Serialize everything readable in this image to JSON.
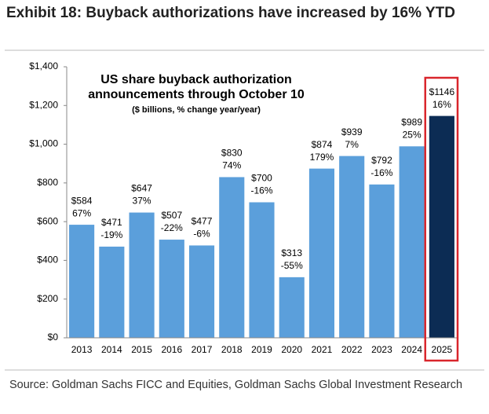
{
  "chart_data": {
    "type": "bar",
    "title": "Exhibit 18: Buyback authorizations have increased by 16% YTD",
    "inner_title": "US share buyback authorization announcements through October 10",
    "subtitle": "($ billions, % change year/year)",
    "source": "Source: Goldman Sachs FICC and Equities, Goldman Sachs Global Investment Research",
    "categories": [
      "2013",
      "2014",
      "2015",
      "2016",
      "2017",
      "2018",
      "2019",
      "2020",
      "2021",
      "2022",
      "2023",
      "2024",
      "2025"
    ],
    "values": [
      584,
      471,
      647,
      507,
      477,
      830,
      700,
      313,
      874,
      939,
      792,
      989,
      1146
    ],
    "value_labels": [
      "$584",
      "$471",
      "$647",
      "$507",
      "$477",
      "$830",
      "$700",
      "$313",
      "$874",
      "$939",
      "$792",
      "$989",
      "$1146"
    ],
    "change_labels": [
      "67%",
      "-19%",
      "37%",
      "-22%",
      "-6%",
      "74%",
      "-16%",
      "-55%",
      "179%",
      "7%",
      "-16%",
      "25%",
      "16%"
    ],
    "colors": [
      "#5b9fdb",
      "#5b9fdb",
      "#5b9fdb",
      "#5b9fdb",
      "#5b9fdb",
      "#5b9fdb",
      "#5b9fdb",
      "#5b9fdb",
      "#5b9fdb",
      "#5b9fdb",
      "#5b9fdb",
      "#5b9fdb",
      "#0c2c54"
    ],
    "highlight_color": "#d9262c",
    "ylim": [
      0,
      1400
    ],
    "yticks": [
      {
        "value": 0,
        "label": "$0"
      },
      {
        "value": 200,
        "label": "$200"
      },
      {
        "value": 400,
        "label": "$400"
      },
      {
        "value": 600,
        "label": "$600"
      },
      {
        "value": 800,
        "label": "$800"
      },
      {
        "value": 1000,
        "label": "$1,000"
      },
      {
        "value": 1200,
        "label": "$1,200"
      },
      {
        "value": 1400,
        "label": "$1,400"
      }
    ],
    "grid": false
  }
}
